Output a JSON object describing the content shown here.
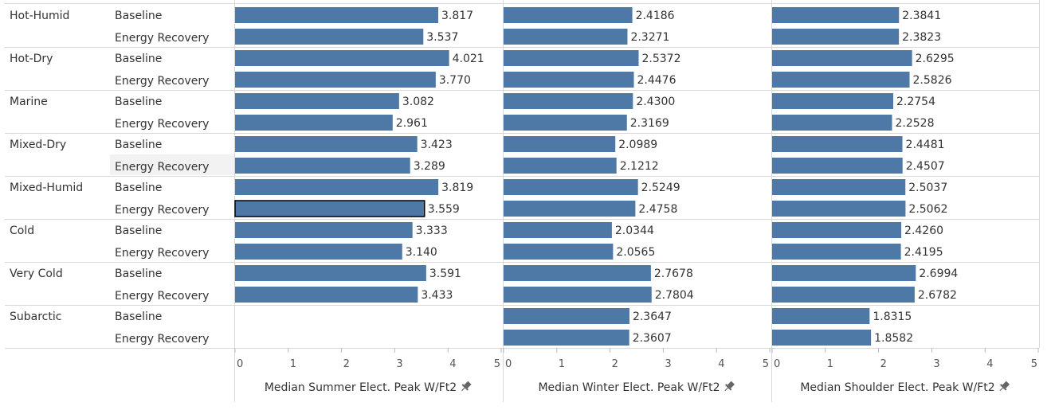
{
  "chart_data": {
    "type": "bar",
    "orientation": "horizontal",
    "grid": true,
    "climate_zones": [
      "Hot-Humid",
      "Hot-Dry",
      "Marine",
      "Mixed-Dry",
      "Mixed-Humid",
      "Cold",
      "Very Cold",
      "Subarctic"
    ],
    "scenarios": [
      "Baseline",
      "Energy Recovery"
    ],
    "panels": [
      {
        "xlabel": "Median Summer Elect. Peak W/Ft2",
        "xlim": [
          0,
          5
        ],
        "ticks": [
          0,
          1,
          2,
          3,
          4,
          5
        ],
        "values": [
          [
            "3.817",
            "3.537"
          ],
          [
            "4.021",
            "3.770"
          ],
          [
            "3.082",
            "2.961"
          ],
          [
            "3.423",
            "3.289"
          ],
          [
            "3.819",
            "3.559"
          ],
          [
            "3.333",
            "3.140"
          ],
          [
            "3.591",
            "3.433"
          ],
          [
            null,
            null
          ]
        ]
      },
      {
        "xlabel": "Median Winter Elect. Peak W/Ft2",
        "xlim": [
          0,
          5
        ],
        "ticks": [
          0,
          1,
          2,
          3,
          4,
          5
        ],
        "values": [
          [
            "2.4186",
            "2.3271"
          ],
          [
            "2.5372",
            "2.4476"
          ],
          [
            "2.4300",
            "2.3169"
          ],
          [
            "2.0989",
            "2.1212"
          ],
          [
            "2.5249",
            "2.4758"
          ],
          [
            "2.0344",
            "2.0565"
          ],
          [
            "2.7678",
            "2.7804"
          ],
          [
            "2.3647",
            "2.3607"
          ]
        ]
      },
      {
        "xlabel": "Median Shoulder Elect. Peak W/Ft2",
        "xlim": [
          0,
          5
        ],
        "ticks": [
          0,
          1,
          2,
          3,
          4,
          5
        ],
        "values": [
          [
            "2.3841",
            "2.3823"
          ],
          [
            "2.6295",
            "2.5826"
          ],
          [
            "2.2754",
            "2.2528"
          ],
          [
            "2.4481",
            "2.4507"
          ],
          [
            "2.5037",
            "2.5062"
          ],
          [
            "2.4260",
            "2.4195"
          ],
          [
            "2.6994",
            "2.6782"
          ],
          [
            "1.8315",
            "1.8582"
          ]
        ]
      }
    ],
    "colors": {
      "bar": "#4e79a7",
      "highlight_outline": "#000000",
      "gridline": "#d9d9d9"
    },
    "pin_icon": "pin-icon"
  }
}
